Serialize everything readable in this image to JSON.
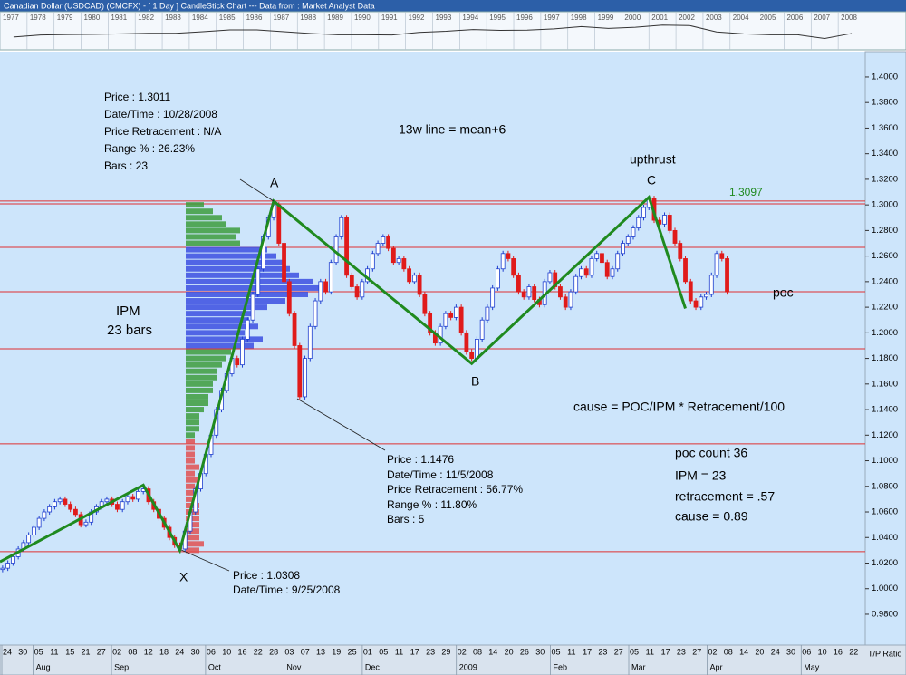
{
  "window_title": "Canadian Dollar (USDCAD) (CMCFX) -  [ 1 Day ] CandleStick Chart --- Data from : Market Analyst Data",
  "overview": {
    "years": [
      1977,
      1978,
      1979,
      1980,
      1981,
      1982,
      1983,
      1984,
      1985,
      1986,
      1987,
      1988,
      1989,
      1990,
      1991,
      1992,
      1993,
      1994,
      1995,
      1996,
      1997,
      1998,
      1999,
      2000,
      2001,
      2002,
      2003,
      2004,
      2005,
      2006,
      2007,
      2008
    ],
    "values": [
      1.06,
      1.15,
      1.17,
      1.18,
      1.2,
      1.23,
      1.23,
      1.3,
      1.38,
      1.38,
      1.3,
      1.22,
      1.16,
      1.16,
      1.15,
      1.27,
      1.32,
      1.4,
      1.36,
      1.37,
      1.43,
      1.53,
      1.45,
      1.5,
      1.6,
      1.58,
      1.29,
      1.2,
      1.16,
      1.16,
      0.99,
      1.22
    ],
    "ylim": [
      0.6,
      2.0
    ]
  },
  "chart_data": {
    "type": "candlestick",
    "close": [
      1.016,
      1.02,
      1.025,
      1.031,
      1.036,
      1.042,
      1.048,
      1.055,
      1.06,
      1.064,
      1.068,
      1.07,
      1.066,
      1.062,
      1.058,
      1.05,
      1.052,
      1.06,
      1.064,
      1.068,
      1.07,
      1.066,
      1.062,
      1.068,
      1.072,
      1.07,
      1.076,
      1.078,
      1.068,
      1.062,
      1.055,
      1.048,
      1.04,
      1.034,
      1.031,
      1.045,
      1.06,
      1.078,
      1.09,
      1.105,
      1.12,
      1.14,
      1.155,
      1.168,
      1.18,
      1.175,
      1.195,
      1.21,
      1.23,
      1.25,
      1.275,
      1.29,
      1.3,
      1.27,
      1.24,
      1.215,
      1.19,
      1.15,
      1.18,
      1.205,
      1.225,
      1.24,
      1.232,
      1.255,
      1.275,
      1.29,
      1.245,
      1.236,
      1.228,
      1.24,
      1.25,
      1.262,
      1.27,
      1.275,
      1.266,
      1.255,
      1.258,
      1.25,
      1.24,
      1.245,
      1.23,
      1.215,
      1.2,
      1.192,
      1.205,
      1.215,
      1.212,
      1.22,
      1.2,
      1.185,
      1.18,
      1.195,
      1.21,
      1.22,
      1.235,
      1.25,
      1.262,
      1.258,
      1.245,
      1.232,
      1.228,
      1.236,
      1.226,
      1.222,
      1.24,
      1.247,
      1.236,
      1.228,
      1.22,
      1.232,
      1.244,
      1.25,
      1.245,
      1.258,
      1.262,
      1.255,
      1.244,
      1.25,
      1.262,
      1.27,
      1.275,
      1.282,
      1.29,
      1.298,
      1.305,
      1.288,
      1.285,
      1.292,
      1.28,
      1.27,
      1.258,
      1.24,
      1.225,
      1.22,
      1.228,
      1.23,
      1.245,
      1.262,
      1.258,
      1.232
    ],
    "up_color": "#1f3fcf",
    "down_color": "#e01b1b",
    "xlim": [
      -0.5,
      165.5
    ],
    "ylim": [
      0.9559,
      1.4198
    ],
    "yticks": [
      {
        "value": 1.4,
        "label": "1.4000"
      },
      {
        "value": 1.38,
        "label": "1.3800"
      },
      {
        "value": 1.36,
        "label": "1.3600"
      },
      {
        "value": 1.34,
        "label": "1.3400"
      },
      {
        "value": 1.32,
        "label": "1.3200"
      },
      {
        "value": 1.3,
        "label": "1.3000"
      },
      {
        "value": 1.28,
        "label": "1.2800"
      },
      {
        "value": 1.26,
        "label": "1.2600"
      },
      {
        "value": 1.24,
        "label": "1.2400"
      },
      {
        "value": 1.22,
        "label": "1.2200"
      },
      {
        "value": 1.2,
        "label": "1.2000"
      },
      {
        "value": 1.18,
        "label": "1.1800"
      },
      {
        "value": 1.16,
        "label": "1.1600"
      },
      {
        "value": 1.14,
        "label": "1.1400"
      },
      {
        "value": 1.12,
        "label": "1.1200"
      },
      {
        "value": 1.1,
        "label": "1.1000"
      },
      {
        "value": 1.08,
        "label": "1.0800"
      },
      {
        "value": 1.06,
        "label": "1.0600"
      },
      {
        "value": 1.04,
        "label": "1.0400"
      },
      {
        "value": 1.02,
        "label": "1.0200"
      },
      {
        "value": 1.0,
        "label": "1.0000"
      },
      {
        "value": 0.98,
        "label": "0.9800"
      }
    ],
    "x_axis": [
      {
        "month": null,
        "days": [
          "24",
          "30"
        ]
      },
      {
        "month": "Aug",
        "days": [
          "05",
          "11",
          "15",
          "21",
          "27"
        ]
      },
      {
        "month": "Sep",
        "days": [
          "02",
          "08",
          "12",
          "18",
          "24",
          "30"
        ]
      },
      {
        "month": "Oct",
        "days": [
          "06",
          "10",
          "16",
          "22",
          "28"
        ]
      },
      {
        "month": "Nov",
        "days": [
          "03",
          "07",
          "13",
          "19",
          "25"
        ]
      },
      {
        "month": "Dec",
        "days": [
          "01",
          "05",
          "11",
          "17",
          "23",
          "29"
        ]
      },
      {
        "month": "2009",
        "days": [
          "02",
          "08",
          "14",
          "20",
          "26",
          "30"
        ]
      },
      {
        "month": "Feb",
        "days": [
          "05",
          "11",
          "17",
          "23",
          "27"
        ]
      },
      {
        "month": "Mar",
        "days": [
          "05",
          "11",
          "17",
          "23",
          "27"
        ]
      },
      {
        "month": "Apr",
        "days": [
          "02",
          "08",
          "14",
          "20",
          "24",
          "30"
        ]
      },
      {
        "month": "May",
        "days": [
          "06",
          "10",
          "16",
          "22"
        ]
      }
    ],
    "levels": [
      1.303,
      1.3008,
      1.2668,
      1.2321,
      1.1875,
      1.1132,
      1.0289
    ],
    "level_color": "#e03030",
    "zigzag": {
      "x": [
        -0.5,
        27,
        34,
        52,
        90,
        124,
        131
      ],
      "y": [
        1.021,
        1.081,
        1.03,
        1.303,
        1.176,
        1.306,
        1.219
      ],
      "color": "#1f8a1f"
    },
    "volume_profile": [
      {
        "color": "#3c9c3c",
        "prices": [
          1.3,
          1.295,
          1.29,
          1.285,
          1.28,
          1.275,
          1.27
        ],
        "values": [
          4,
          6,
          8,
          9,
          12,
          11,
          12
        ]
      },
      {
        "color": "#3b4fe0",
        "prices": [
          1.265,
          1.26,
          1.255,
          1.25,
          1.245,
          1.24,
          1.235,
          1.23,
          1.225,
          1.22,
          1.215,
          1.21,
          1.205,
          1.2,
          1.195,
          1.19
        ],
        "values": [
          18,
          20,
          22,
          23,
          25,
          28,
          30,
          27,
          22,
          18,
          15,
          14,
          16,
          13,
          17,
          15
        ]
      },
      {
        "color": "#3c9c3c",
        "prices": [
          1.185,
          1.18,
          1.175,
          1.17,
          1.165,
          1.16,
          1.155,
          1.15,
          1.145,
          1.14,
          1.135,
          1.13,
          1.125,
          1.12
        ],
        "values": [
          10,
          9,
          8,
          7,
          7,
          6,
          6,
          5,
          5,
          4,
          3,
          3,
          3,
          2
        ]
      },
      {
        "color": "#e05050",
        "prices": [
          1.115,
          1.11,
          1.105,
          1.1,
          1.095,
          1.09,
          1.085,
          1.08,
          1.075,
          1.07,
          1.065,
          1.06,
          1.055,
          1.05,
          1.045,
          1.04,
          1.035,
          1.03
        ],
        "values": [
          2,
          2,
          2,
          2,
          3,
          2,
          3,
          2,
          2,
          2,
          3,
          3,
          3,
          3,
          3,
          3,
          4,
          3
        ]
      }
    ],
    "annotations": {
      "pivot_a": [
        "Price : 1.3011",
        "Date/Time : 10/28/2008",
        "Price Retracement : N/A",
        "Range % : 26.23%",
        "Bars : 23"
      ],
      "line_note": "13w line = mean+6",
      "upthrust": "upthrust",
      "high_price": "1.3097",
      "a": "A",
      "b": "B",
      "c": "C",
      "x": "X",
      "ipm": [
        "IPM",
        "23 bars"
      ],
      "poc": "poc",
      "formula": "cause = POC/IPM * Retracement/100",
      "pivot_b": [
        "Price : 1.1476",
        "Date/Time : 11/5/2008",
        "Price Retracement : 56.77%",
        "Range % : 11.80%",
        "Bars : 5"
      ],
      "summary": [
        "poc count 36",
        "IPM = 23",
        "retracement = .57",
        "cause = 0.89"
      ],
      "pivot_x": [
        "Price : 1.0308",
        "Date/Time : 9/25/2008"
      ]
    },
    "axis_label": "T/P Ratio"
  }
}
